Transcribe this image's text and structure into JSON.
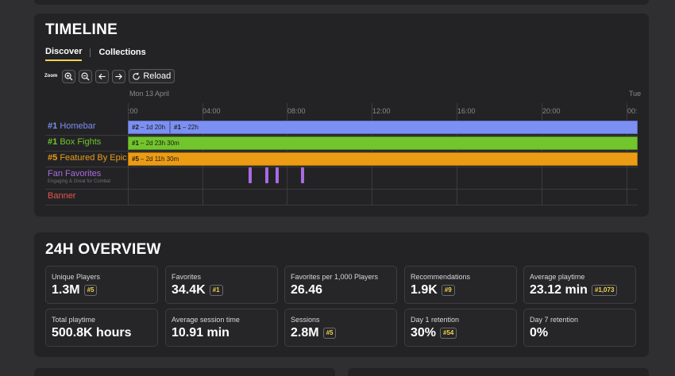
{
  "timeline": {
    "title": "TIMELINE",
    "tabs": [
      "Discover",
      "Collections"
    ],
    "zoom_label": "Zoom",
    "reload_label": "Reload",
    "date_label": "Mon 13 April",
    "date_label_next": "Tue",
    "ticks": [
      ":00",
      "04:00",
      "08:00",
      "12:00",
      "16:00",
      "20:00",
      "00:"
    ],
    "rows": [
      {
        "rank": "#1",
        "label": "Homebar",
        "color": "#7b90f2"
      },
      {
        "rank": "#1",
        "label": "Box Fights",
        "color": "#72c52d"
      },
      {
        "rank": "#5",
        "label": "Featured By Epic",
        "color": "#eb9c14"
      },
      {
        "rank": "",
        "label": "Fan Favorites",
        "sub": "Engaging & Great for Combat",
        "color": "#a86be0"
      },
      {
        "rank": "",
        "label": "Banner",
        "color": "#e9544f"
      }
    ],
    "bars": [
      {
        "rank": "#2",
        "duration": "1d 20h"
      },
      {
        "rank": "#1",
        "duration": "22h"
      },
      {
        "rank": "#1",
        "duration": "2d 23h 30m"
      },
      {
        "rank": "#5",
        "duration": "2d 11h 30m"
      }
    ]
  },
  "overview": {
    "title": "24H OVERVIEW",
    "metrics": [
      {
        "label": "Unique Players",
        "value": "1.3M",
        "rank": "#5"
      },
      {
        "label": "Favorites",
        "value": "34.4K",
        "rank": "#1"
      },
      {
        "label": "Favorites per 1,000 Players",
        "value": "26.46",
        "rank": ""
      },
      {
        "label": "Recommendations",
        "value": "1.9K",
        "rank": "#9"
      },
      {
        "label": "Average playtime",
        "value": "23.12 min",
        "rank": "#1,073"
      },
      {
        "label": "Total playtime",
        "value": "500.8K hours",
        "rank": ""
      },
      {
        "label": "Average session time",
        "value": "10.91 min",
        "rank": ""
      },
      {
        "label": "Sessions",
        "value": "2.8M",
        "rank": "#5"
      },
      {
        "label": "Day 1 retention",
        "value": "30%",
        "rank": "#54"
      },
      {
        "label": "Day 7 retention",
        "value": "0%",
        "rank": ""
      }
    ]
  },
  "colors": {
    "accent": "#f2d34d",
    "card": "#232325",
    "background": "#2f2f31"
  }
}
